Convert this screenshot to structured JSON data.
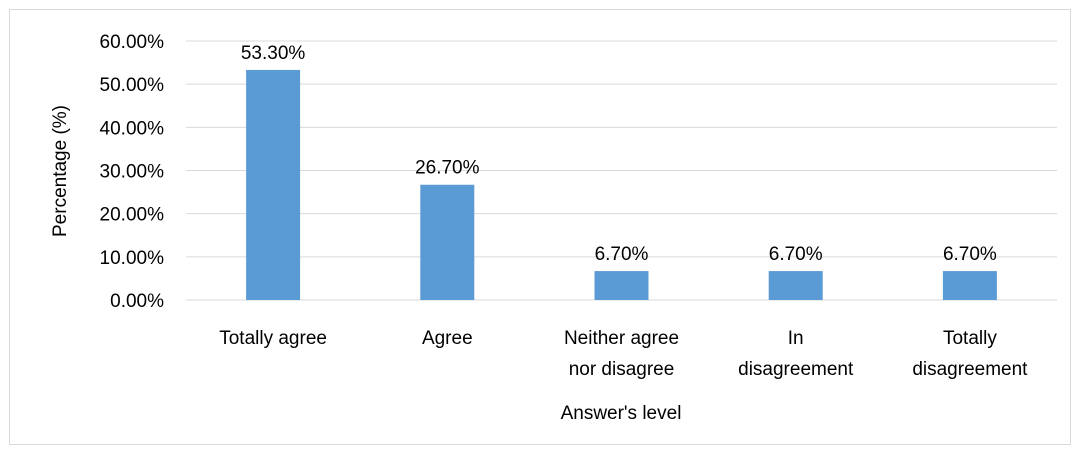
{
  "chart_data": {
    "type": "bar",
    "categories": [
      [
        "Totally agree"
      ],
      [
        "Agree"
      ],
      [
        "Neither agree",
        "nor disagree"
      ],
      [
        "In",
        "disagreement"
      ],
      [
        "Totally",
        "disagreement"
      ]
    ],
    "values": [
      53.3,
      26.7,
      6.7,
      6.7,
      6.7
    ],
    "data_labels": [
      "53.30%",
      "26.70%",
      "6.70%",
      "6.70%",
      "6.70%"
    ],
    "y_ticks": [
      "0.00%",
      "10.00%",
      "20.00%",
      "30.00%",
      "40.00%",
      "50.00%",
      "60.00%"
    ],
    "ylim": [
      0,
      60
    ],
    "ylabel": "Percentage (%)",
    "xlabel": "Answer's level",
    "grid": true,
    "legend": "none",
    "colors": {
      "bar": "#5b9bd5",
      "grid": "#d9d9d9",
      "frame": "#d9d9d9"
    }
  }
}
